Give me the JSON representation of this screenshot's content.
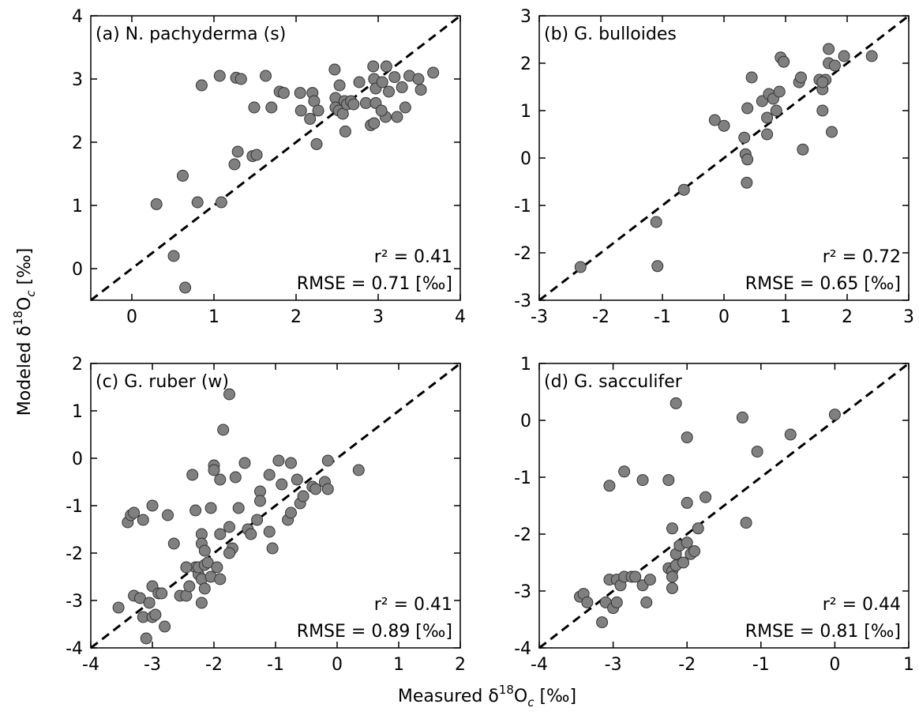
{
  "chart_data": [
    {
      "type": "scatter",
      "title": "(a) N. pachyderma (s)",
      "annotations": [
        "r² = 0.41",
        "RMSE = 0.71 [‰]"
      ],
      "color": "#808080",
      "x": [
        0.3,
        0.51,
        0.65,
        0.62,
        0.8,
        0.85,
        1.09,
        1.07,
        1.27,
        1.33,
        1.25,
        1.29,
        1.47,
        1.52,
        1.49,
        1.63,
        1.7,
        1.8,
        1.85,
        2.05,
        2.06,
        2.17,
        2.2,
        2.22,
        2.25,
        2.27,
        2.48,
        2.47,
        2.48,
        2.52,
        2.53,
        2.57,
        2.6,
        2.59,
        2.62,
        2.67,
        2.7,
        2.77,
        2.85,
        2.91,
        2.95,
        2.94,
        2.95,
        2.97,
        2.97,
        3.05,
        3.09,
        3.1,
        3.13,
        3.2,
        3.23,
        3.29,
        3.33,
        3.38,
        3.49,
        3.52,
        3.67,
        3.04
      ],
      "y": [
        1.02,
        0.2,
        -0.3,
        1.47,
        1.05,
        2.9,
        1.05,
        3.05,
        3.02,
        3.0,
        1.65,
        1.85,
        1.78,
        1.8,
        2.55,
        3.05,
        2.55,
        2.8,
        2.78,
        2.78,
        2.5,
        2.37,
        2.78,
        2.65,
        1.97,
        2.5,
        2.7,
        3.15,
        2.55,
        2.5,
        2.9,
        2.45,
        2.17,
        2.65,
        2.6,
        2.65,
        2.6,
        2.95,
        2.62,
        2.27,
        2.3,
        3.2,
        3.0,
        2.62,
        2.85,
        2.95,
        2.4,
        3.2,
        2.8,
        3.03,
        2.4,
        2.87,
        2.55,
        3.05,
        3.0,
        2.83,
        3.1,
        2.5
      ],
      "xlim": [
        -0.5,
        4
      ],
      "ylim": [
        -0.5,
        4
      ],
      "xticks": [
        0,
        1,
        2,
        3,
        4
      ],
      "yticks": [
        0,
        1,
        2,
        3,
        4
      ]
    },
    {
      "type": "scatter",
      "title": "(b) G. bulloides",
      "annotations": [
        "r² = 0.72",
        "RMSE = 0.65 [‰]"
      ],
      "color": "#808080",
      "x": [
        -2.33,
        -1.1,
        -1.08,
        -0.65,
        -0.15,
        0.0,
        0.33,
        0.35,
        0.38,
        0.37,
        0.38,
        0.45,
        0.62,
        0.7,
        0.7,
        0.73,
        0.8,
        0.85,
        0.9,
        0.92,
        0.97,
        1.22,
        1.25,
        1.28,
        1.55,
        1.6,
        1.6,
        1.65,
        1.7,
        1.7,
        1.75,
        1.8,
        1.95,
        2.4,
        1.6
      ],
      "y": [
        -2.3,
        -1.35,
        -2.28,
        -0.67,
        0.8,
        0.68,
        0.43,
        0.08,
        -0.03,
        -0.52,
        1.05,
        1.7,
        1.2,
        0.5,
        0.85,
        1.35,
        1.25,
        1.0,
        1.4,
        2.12,
        2.03,
        1.6,
        1.7,
        0.18,
        1.65,
        1.0,
        1.45,
        1.65,
        2.3,
        2.0,
        0.55,
        1.95,
        2.15,
        2.15,
        1.6
      ],
      "xlim": [
        -3,
        3
      ],
      "ylim": [
        -3,
        3
      ],
      "xticks": [
        -3,
        -2,
        -1,
        0,
        1,
        2,
        3
      ],
      "yticks": [
        -3,
        -2,
        -1,
        0,
        1,
        2,
        3
      ]
    },
    {
      "type": "scatter",
      "title": "(c) G. ruber (w)",
      "annotations": [
        "r² = 0.41",
        "RMSE = 0.89 [‰]"
      ],
      "color": "#808080",
      "x": [
        -3.55,
        -3.4,
        -3.35,
        -3.3,
        -3.3,
        -3.2,
        -3.15,
        -3.15,
        -3.1,
        -3.05,
        -3.0,
        -3.0,
        -3.0,
        -2.95,
        -2.9,
        -2.85,
        -2.8,
        -2.75,
        -2.65,
        -2.55,
        -2.45,
        -2.4,
        -2.35,
        -2.3,
        -2.3,
        -2.25,
        -2.25,
        -2.2,
        -2.2,
        -2.2,
        -2.2,
        -2.15,
        -2.15,
        -2.15,
        -2.1,
        -2.05,
        -2.05,
        -2.0,
        -2.0,
        -1.95,
        -1.9,
        -1.9,
        -1.85,
        -1.75,
        -1.75,
        -1.7,
        -1.75,
        -1.65,
        -1.6,
        -1.5,
        -1.45,
        -1.4,
        -1.3,
        -1.25,
        -1.25,
        -1.1,
        -1.1,
        -1.05,
        -0.95,
        -0.9,
        -0.8,
        -0.75,
        -0.75,
        -0.65,
        -0.6,
        -0.55,
        -0.4,
        -0.35,
        -0.2,
        -0.15,
        -0.15,
        0.35,
        -1.9,
        -2.45
      ],
      "y": [
        -3.15,
        -1.35,
        -1.2,
        -1.15,
        -2.9,
        -2.95,
        -1.3,
        -3.35,
        -3.8,
        -3.05,
        -1.0,
        -2.7,
        -3.35,
        -3.3,
        -2.85,
        -2.85,
        -3.55,
        -1.2,
        -1.8,
        -2.9,
        -2.9,
        -2.7,
        -0.35,
        -1.1,
        -2.3,
        -2.45,
        -2.3,
        -2.55,
        -1.6,
        -1.8,
        -3.05,
        -1.95,
        -2.25,
        -2.75,
        -2.2,
        -2.5,
        -1.05,
        -0.15,
        -0.25,
        -2.3,
        -0.45,
        -2.55,
        0.6,
        1.35,
        -1.45,
        -1.9,
        -2.0,
        -0.4,
        -1.05,
        -0.1,
        -1.5,
        -1.6,
        -1.3,
        -0.7,
        -0.9,
        -0.35,
        -1.55,
        -1.9,
        -0.05,
        -0.55,
        -1.3,
        -0.1,
        -1.15,
        -0.45,
        -0.95,
        -0.8,
        -0.6,
        -0.65,
        -0.5,
        -0.65,
        -0.05,
        -0.25,
        -1.6,
        -2.3
      ],
      "xlim": [
        -4,
        2
      ],
      "ylim": [
        -4,
        2
      ],
      "xticks": [
        -4,
        -3,
        -2,
        -1,
        0,
        1,
        2
      ],
      "yticks": [
        -4,
        -3,
        -2,
        -1,
        0,
        1,
        2
      ]
    },
    {
      "type": "scatter",
      "title": "(d) G. sacculifer",
      "annotations": [
        "r² = 0.44",
        "RMSE = 0.81 [‰]"
      ],
      "color": "#808080",
      "x": [
        -3.45,
        -3.4,
        -3.35,
        -3.15,
        -3.1,
        -3.05,
        -3.05,
        -3.0,
        -2.95,
        -2.95,
        -2.9,
        -2.85,
        -2.85,
        -2.75,
        -2.7,
        -2.6,
        -2.6,
        -2.55,
        -2.5,
        -2.25,
        -2.25,
        -2.2,
        -2.2,
        -2.2,
        -2.15,
        -2.15,
        -2.15,
        -2.1,
        -2.05,
        -2.0,
        -2.0,
        -2.0,
        -1.95,
        -1.9,
        -1.85,
        -1.75,
        -1.25,
        -1.2,
        -1.05,
        -0.6,
        0.0,
        -2.2
      ],
      "y": [
        -3.1,
        -3.05,
        -3.2,
        -3.55,
        -3.2,
        -2.8,
        -1.15,
        -3.3,
        -2.8,
        -3.2,
        -2.9,
        -0.9,
        -2.75,
        -2.75,
        -2.75,
        -1.05,
        -2.9,
        -3.2,
        -2.8,
        -2.6,
        -1.05,
        -1.9,
        -2.65,
        -2.95,
        0.3,
        -2.35,
        -2.55,
        -2.2,
        -2.5,
        -0.3,
        -1.45,
        -2.15,
        -2.35,
        -2.3,
        -1.9,
        -1.35,
        0.05,
        -1.8,
        -0.55,
        -0.25,
        0.1,
        -2.75
      ],
      "xlim": [
        -4,
        1
      ],
      "ylim": [
        -4,
        1
      ],
      "xticks": [
        -4,
        -3,
        -2,
        -1,
        0,
        1
      ],
      "yticks": [
        -4,
        -3,
        -2,
        -1,
        0,
        1
      ]
    }
  ],
  "xlabel": {
    "prefix": "Measured δ",
    "sup": "18",
    "base": "O",
    "sub": "c",
    "suffix": " [‰]"
  },
  "ylabel": {
    "prefix": "Modeled δ",
    "sup": "18",
    "base": "O",
    "sub": "c",
    "suffix": " [‰]"
  }
}
